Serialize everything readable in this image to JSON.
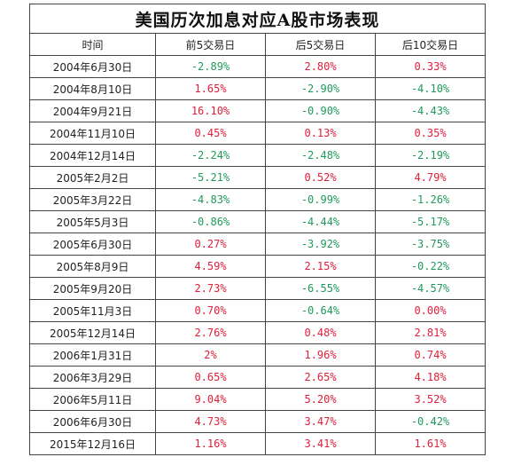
{
  "title": "美国历次加息对应A股市场表现",
  "headers": [
    "时间",
    "前5交易日",
    "后5交易日",
    "后10交易日"
  ],
  "rows": [
    {
      "date": "2004年6月30日",
      "pre5": "-2.89%",
      "post5": "2.80%",
      "post10": "0.33%"
    },
    {
      "date": "2004年8月10日",
      "pre5": "1.65%",
      "post5": "-2.90%",
      "post10": "-4.10%"
    },
    {
      "date": "2004年9月21日",
      "pre5": "16.10%",
      "post5": "-0.90%",
      "post10": "-4.43%"
    },
    {
      "date": "2004年11月10日",
      "pre5": "0.45%",
      "post5": "0.13%",
      "post10": "0.35%"
    },
    {
      "date": "2004年12月14日",
      "pre5": "-2.24%",
      "post5": "-2.48%",
      "post10": "-2.19%"
    },
    {
      "date": "2005年2月2日",
      "pre5": "-5.21%",
      "post5": "0.52%",
      "post10": "4.79%"
    },
    {
      "date": "2005年3月22日",
      "pre5": "-4.83%",
      "post5": "-0.99%",
      "post10": "-1.26%"
    },
    {
      "date": "2005年5月3日",
      "pre5": "-0.86%",
      "post5": "-4.44%",
      "post10": "-5.17%"
    },
    {
      "date": "2005年6月30日",
      "pre5": "0.27%",
      "post5": "-3.92%",
      "post10": "-3.75%"
    },
    {
      "date": "2005年8月9日",
      "pre5": "4.59%",
      "post5": "2.15%",
      "post10": "-0.22%"
    },
    {
      "date": "2005年9月20日",
      "pre5": "2.73%",
      "post5": "-6.55%",
      "post10": "-4.57%"
    },
    {
      "date": "2005年11月3日",
      "pre5": "0.70%",
      "post5": "-0.64%",
      "post10": "0.00%"
    },
    {
      "date": "2005年12月14日",
      "pre5": "2.76%",
      "post5": "0.48%",
      "post10": "2.81%"
    },
    {
      "date": "2006年1月31日",
      "pre5": "2%",
      "post5": "1.96%",
      "post10": "0.74%"
    },
    {
      "date": "2006年3月29日",
      "pre5": "0.65%",
      "post5": "2.65%",
      "post10": "4.18%"
    },
    {
      "date": "2006年5月11日",
      "pre5": "9.04%",
      "post5": "5.20%",
      "post10": "3.52%"
    },
    {
      "date": "2006年6月30日",
      "pre5": "4.73%",
      "post5": "3.47%",
      "post10": "-0.42%"
    },
    {
      "date": "2015年12月16日",
      "pre5": "1.16%",
      "post5": "3.41%",
      "post10": "1.61%"
    }
  ],
  "colors": {
    "positive": "#e0203a",
    "negative": "#1f9a5a",
    "border": "#444444",
    "text": "#222222"
  }
}
